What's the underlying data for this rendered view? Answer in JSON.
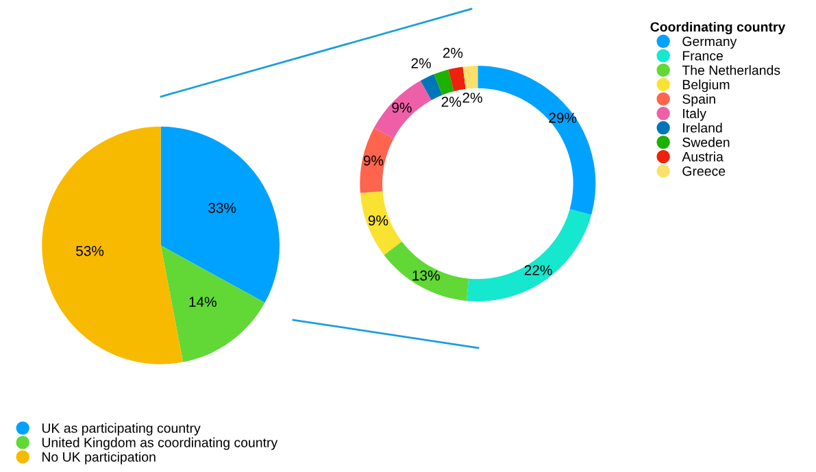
{
  "chart_data": [
    {
      "type": "pie",
      "categories": [
        "UK as participating country",
        "United Kingdom as coordinating country",
        "No UK participation"
      ],
      "values": [
        33,
        14,
        53
      ],
      "colors": [
        "#00a2ff",
        "#61d836",
        "#f8ba00"
      ],
      "value_labels": [
        "33%",
        "14%",
        "53%"
      ],
      "legend": "bottom left"
    },
    {
      "type": "donut",
      "legend_title": "Coordinating country",
      "categories": [
        "Germany",
        "France",
        "The Netherlands",
        "Belgium",
        "Spain",
        "Italy",
        "Ireland",
        "Sweden",
        "Austria",
        "Greece"
      ],
      "values": [
        29,
        22,
        13,
        9,
        9,
        9,
        2,
        2,
        2,
        2
      ],
      "colors": [
        "#00a2ff",
        "#16e7cf",
        "#61d836",
        "#fae232",
        "#ff644e",
        "#ef5fa7",
        "#0076ba",
        "#1db100",
        "#ee220c",
        "#fbe16b"
      ],
      "value_labels": [
        "29%",
        "22%",
        "13%",
        "9%",
        "9%",
        "9%",
        "2%",
        "2%",
        "2%",
        "2%"
      ],
      "legend": "top right"
    }
  ]
}
